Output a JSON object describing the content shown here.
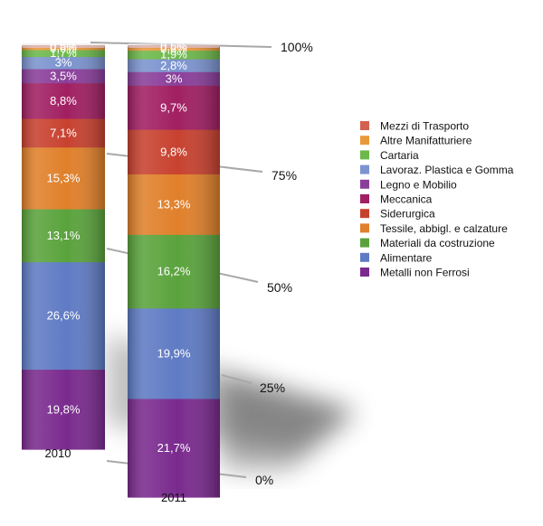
{
  "chart_data": {
    "type": "bar",
    "stacked": true,
    "title": "",
    "categories": [
      "2010",
      "2011"
    ],
    "yticks": [
      "0%",
      "25%",
      "50%",
      "75%",
      "100%"
    ],
    "ylim": [
      0,
      100
    ],
    "legend_position": "right",
    "series": [
      {
        "name": "Metalli non Ferrosi",
        "color": "#7a2a8e",
        "values": [
          19.8,
          21.7
        ],
        "labels": [
          "19,8%",
          "21,7%"
        ]
      },
      {
        "name": "Alimentare",
        "color": "#5f7bc4",
        "values": [
          26.6,
          19.9
        ],
        "labels": [
          "26,6%",
          "19,9%"
        ]
      },
      {
        "name": "Materiali da costruzione",
        "color": "#5aa33c",
        "values": [
          13.1,
          16.2
        ],
        "labels": [
          "13,1%",
          "16,2%"
        ]
      },
      {
        "name": "Tessile, abbigl. e calzature",
        "color": "#e0802a",
        "values": [
          15.3,
          13.3
        ],
        "labels": [
          "15,3%",
          "13,3%"
        ]
      },
      {
        "name": "Siderurgica",
        "color": "#c8412f",
        "values": [
          7.1,
          9.8
        ],
        "labels": [
          "7,1%",
          "9,8%"
        ]
      },
      {
        "name": "Meccanica",
        "color": "#a11f62",
        "values": [
          8.8,
          9.7
        ],
        "labels": [
          "8,8%",
          "9,7%"
        ]
      },
      {
        "name": "Legno e Mobilio",
        "color": "#8a3e9a",
        "values": [
          3.5,
          3.0
        ],
        "labels": [
          "3,5%",
          "3%"
        ]
      },
      {
        "name": "Lavoraz. Plastica e Gomma",
        "color": "#7b93cf",
        "values": [
          3.0,
          2.8
        ],
        "labels": [
          "3%",
          "2,8%"
        ]
      },
      {
        "name": "Cartaria",
        "color": "#6db84a",
        "values": [
          1.7,
          1.9
        ],
        "labels": [
          "1,7%",
          "1,9%"
        ]
      },
      {
        "name": "Altre Manifatturiere",
        "color": "#e89a3a",
        "values": [
          0.6,
          0.6
        ],
        "labels": [
          "0,6%",
          "0,6%"
        ]
      },
      {
        "name": "Mezzi di Trasporto",
        "color": "#d4604f",
        "values": [
          0.5,
          0.5
        ],
        "labels": [
          "0,5%",
          "0,5%"
        ]
      }
    ]
  }
}
